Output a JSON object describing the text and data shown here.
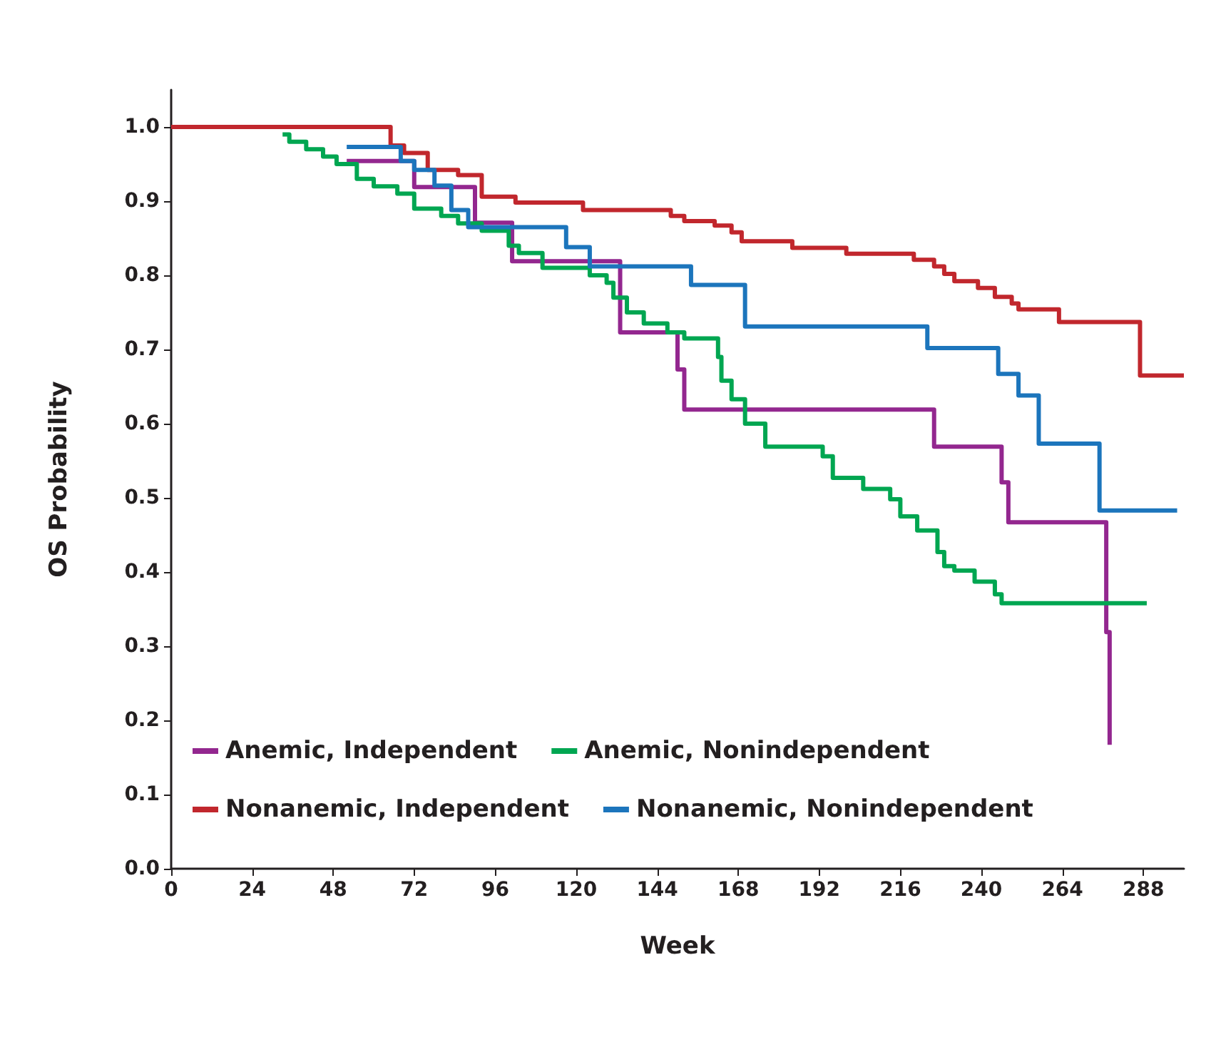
{
  "chart_data": {
    "type": "step",
    "xlabel": "Week",
    "ylabel": "OS Probability",
    "xlim": [
      0,
      300
    ],
    "xticks": [
      0,
      24,
      48,
      72,
      96,
      120,
      144,
      168,
      192,
      216,
      240,
      264,
      288
    ],
    "ylim": [
      0,
      1.05
    ],
    "yticks": [
      {
        "value": 0,
        "label": "0.0"
      },
      0.1,
      0.2,
      0.3,
      0.4,
      0.5,
      0.6,
      0.7,
      0.8,
      0.9,
      {
        "value": 1,
        "label": "1.0"
      }
    ],
    "grid": false,
    "legend": "bottom left",
    "marker": "none",
    "line_style": "solid",
    "series": [
      {
        "name": "Anemic, Independent",
        "color": "#93278f",
        "x": [
          52,
          72,
          90,
          101,
          133,
          150,
          152,
          226,
          246,
          248,
          277,
          278
        ],
        "values": [
          0.954,
          0.919,
          0.871,
          0.819,
          0.723,
          0.673,
          0.619,
          0.569,
          0.521,
          0.467,
          0.319,
          0.167
        ]
      },
      {
        "name": "Anemic, Nonindependent",
        "color": "#00a651",
        "x": [
          33,
          35,
          40,
          45,
          49,
          55,
          60,
          67,
          72,
          80,
          85,
          92,
          100,
          103,
          110,
          118,
          124,
          129,
          131,
          135,
          140,
          147,
          152,
          162,
          163,
          166,
          170,
          176,
          193,
          196,
          205,
          213,
          216,
          221,
          227,
          229,
          232,
          238,
          244,
          246,
          289
        ],
        "values": [
          0.99,
          0.98,
          0.97,
          0.96,
          0.95,
          0.93,
          0.92,
          0.91,
          0.89,
          0.88,
          0.87,
          0.86,
          0.84,
          0.83,
          0.81,
          0.81,
          0.8,
          0.79,
          0.77,
          0.75,
          0.735,
          0.723,
          0.715,
          0.69,
          0.658,
          0.633,
          0.6,
          0.569,
          0.556,
          0.527,
          0.512,
          0.498,
          0.475,
          0.456,
          0.427,
          0.408,
          0.402,
          0.387,
          0.37,
          0.358,
          0.358
        ]
      },
      {
        "name": "Nonanemic, Independent",
        "color": "#c1272d",
        "x": [
          0,
          58,
          65,
          69,
          76,
          85,
          92,
          102,
          122,
          148,
          152,
          161,
          166,
          169,
          184,
          200,
          220,
          226,
          229,
          232,
          239,
          244,
          249,
          251,
          263,
          287,
          300
        ],
        "values": [
          1.0,
          1.0,
          0.975,
          0.965,
          0.942,
          0.935,
          0.906,
          0.898,
          0.888,
          0.88,
          0.873,
          0.867,
          0.858,
          0.846,
          0.837,
          0.829,
          0.821,
          0.812,
          0.802,
          0.792,
          0.783,
          0.771,
          0.762,
          0.754,
          0.737,
          0.665,
          0.665
        ]
      },
      {
        "name": "Nonanemic, Nonindependent",
        "color": "#1c75bc",
        "x": [
          52,
          68,
          72,
          78,
          83,
          88,
          117,
          124,
          154,
          170,
          224,
          245,
          251,
          257,
          275,
          298
        ],
        "values": [
          0.973,
          0.954,
          0.942,
          0.921,
          0.888,
          0.865,
          0.838,
          0.812,
          0.787,
          0.731,
          0.702,
          0.667,
          0.638,
          0.573,
          0.483,
          0.483
        ]
      }
    ]
  }
}
